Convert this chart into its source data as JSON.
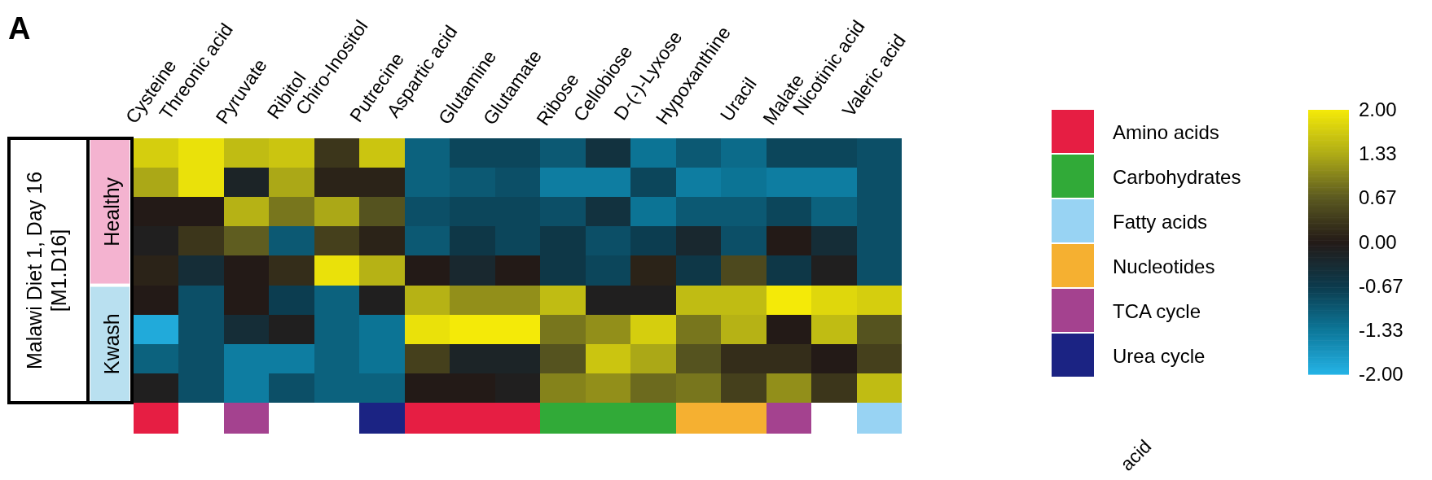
{
  "chart_data": [
    {
      "type": "heatmap",
      "title": "A",
      "ylabel": "Malawi Diet 1, Day 16\n[M1.D16]",
      "annotations": [
        "Healthy",
        "Kwash",
        "acid"
      ],
      "categories": [
        "Cysteine",
        "Threonic acid",
        "Pyruvate",
        "Ribitol",
        "Chiro-Inositol",
        "Putrecine",
        "Aspartic acid",
        "Glutamine",
        "Glutamate",
        "Ribose",
        "Cellobiose",
        "D-(-)-Lyxose",
        "Hypoxanthine",
        "Uracil",
        "Malate",
        "Nicotinic acid",
        "Valeric acid"
      ],
      "y_categories": [
        null,
        null,
        null,
        null,
        null,
        null,
        null,
        null,
        null
      ],
      "cells": [
        [
          1.7,
          1.9,
          1.5,
          1.6,
          0.3,
          1.6,
          -1.1,
          -0.8,
          -0.8,
          -1.0,
          -0.5,
          -1.3,
          -1.0,
          -1.2,
          -0.8,
          -0.8,
          -0.9
        ],
        [
          1.3,
          1.9,
          -0.2,
          1.3,
          0.1,
          0.1,
          -1.1,
          -1.0,
          -0.9,
          -1.4,
          -1.4,
          -0.8,
          -1.4,
          -1.3,
          -1.4,
          -1.4,
          -0.9
        ],
        [
          0.0,
          0.0,
          1.4,
          0.9,
          1.3,
          0.6,
          -0.9,
          -0.8,
          -0.8,
          -0.9,
          -0.5,
          -1.3,
          -1.0,
          -1.0,
          -0.8,
          -1.1,
          -0.9
        ],
        [
          -0.1,
          0.3,
          0.7,
          -1.0,
          0.4,
          0.1,
          -1.0,
          -0.6,
          -0.8,
          -0.6,
          -0.9,
          -0.7,
          -0.3,
          -0.9,
          0.0,
          -0.4,
          -0.9
        ],
        [
          0.1,
          -0.4,
          0.0,
          0.2,
          1.9,
          1.4,
          0.0,
          -0.3,
          0.0,
          -0.6,
          -0.8,
          0.1,
          -0.6,
          0.5,
          -0.6,
          -0.1,
          -0.9
        ],
        [
          0.0,
          -0.9,
          0.0,
          -0.7,
          -1.1,
          -0.1,
          1.4,
          1.1,
          1.1,
          1.5,
          -0.1,
          -0.1,
          1.5,
          1.5,
          2.0,
          1.8,
          1.7
        ],
        [
          -1.9,
          -0.9,
          -0.4,
          -0.1,
          -1.1,
          -1.3,
          1.9,
          2.0,
          2.0,
          0.9,
          1.1,
          1.7,
          0.9,
          1.4,
          0.0,
          1.5,
          0.6
        ],
        [
          -1.1,
          -0.9,
          -1.4,
          -1.4,
          -1.1,
          -1.3,
          0.4,
          -0.2,
          -0.2,
          0.6,
          1.6,
          1.3,
          0.6,
          0.2,
          0.2,
          0.0,
          0.4
        ],
        [
          -0.1,
          -0.9,
          -1.4,
          -0.9,
          -1.1,
          -1.1,
          0.0,
          0.0,
          -0.1,
          1.0,
          1.1,
          0.8,
          0.9,
          0.4,
          1.1,
          0.3,
          1.5
        ]
      ],
      "clim": [
        -2,
        2
      ],
      "cticks": [
        {
          "value": 2,
          "label": "2.00"
        },
        {
          "value": 1.33,
          "label": "1.33"
        },
        {
          "value": 0.67,
          "label": "0.67"
        },
        {
          "value": 0,
          "label": "0.00"
        },
        {
          "value": -0.67,
          "label": "-0.67"
        },
        {
          "value": -1.33,
          "label": "-1.33"
        },
        {
          "value": -2,
          "label": "-2.00"
        }
      ]
    },
    {
      "type": "other",
      "categories": [
        null,
        null,
        null,
        null,
        null,
        null,
        null,
        null,
        null,
        null,
        null,
        null,
        null,
        null,
        null,
        null,
        null
      ],
      "colors": [
        "#e61e43",
        null,
        "#a4428f",
        null,
        null,
        "#1b2383",
        "#e61e43",
        "#e61e43",
        "#e61e43",
        "#31aa38",
        "#31aa38",
        "#31aa38",
        "#f5b031",
        "#f5b031",
        "#a4428f",
        null,
        "#98d3f3"
      ]
    },
    {
      "type": "other",
      "categories": [
        "Amino acids",
        "Carbohydrates",
        "Fatty acids",
        "Nucleotides",
        "TCA cycle",
        "Urea cycle"
      ],
      "colors": [
        "#e61e43",
        "#31aa38",
        "#98d3f3",
        "#f5b031",
        "#a4428f",
        "#1b2383"
      ]
    }
  ]
}
